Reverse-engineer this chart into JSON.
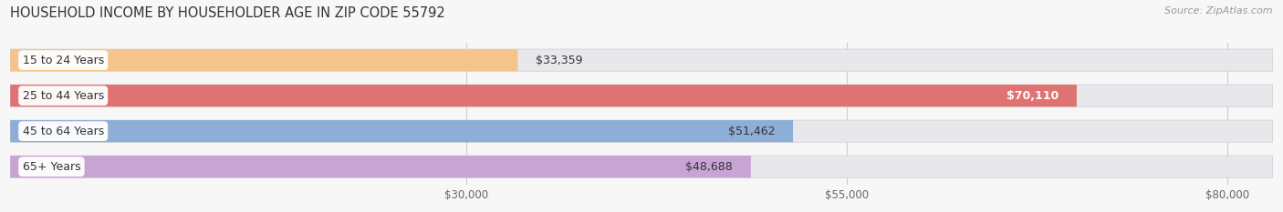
{
  "title": "HOUSEHOLD INCOME BY HOUSEHOLDER AGE IN ZIP CODE 55792",
  "source": "Source: ZipAtlas.com",
  "categories": [
    "15 to 24 Years",
    "25 to 44 Years",
    "45 to 64 Years",
    "65+ Years"
  ],
  "values": [
    33359,
    70110,
    51462,
    48688
  ],
  "bar_colors": [
    "#f5c48c",
    "#e07272",
    "#8daed6",
    "#c8a4d4"
  ],
  "bar_bg_color": "#e8e8ec",
  "label_colors": [
    "#333333",
    "#ffffff",
    "#333333",
    "#333333"
  ],
  "xlim": [
    0,
    83000
  ],
  "xticks": [
    30000,
    55000,
    80000
  ],
  "xtick_labels": [
    "$30,000",
    "$55,000",
    "$80,000"
  ],
  "value_labels": [
    "$33,359",
    "$70,110",
    "$51,462",
    "$48,688"
  ],
  "bar_height": 0.62,
  "figsize": [
    14.06,
    2.33
  ],
  "dpi": 100,
  "title_fontsize": 10.5,
  "label_fontsize": 9,
  "tick_fontsize": 8.5,
  "source_fontsize": 8,
  "background_color": "#f7f7f7"
}
